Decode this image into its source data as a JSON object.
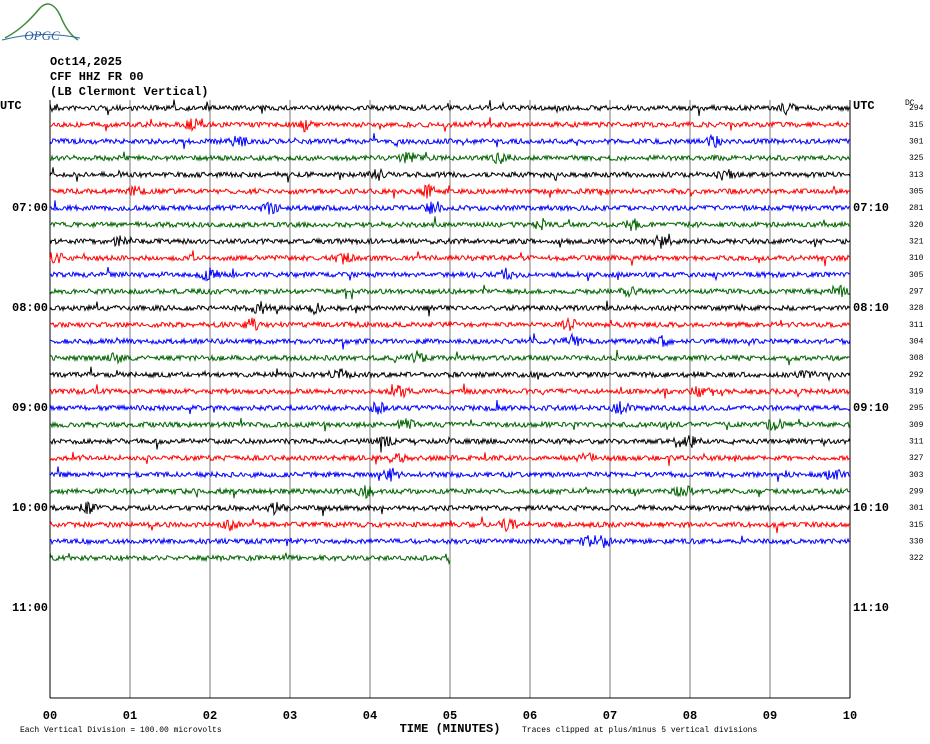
{
  "logo": "OPGC",
  "header": {
    "date": "Oct14,2025",
    "station": "CFF HHZ FR 00",
    "location": "(LB  Clermont Vertical)"
  },
  "left_labels": [
    "UTC",
    "07:00",
    "08:00",
    "09:00",
    "10:00",
    "11:00"
  ],
  "right_labels": [
    "UTC",
    "07:10",
    "08:10",
    "09:10",
    "10:10",
    "11:10"
  ],
  "dc_header": "DC",
  "dc_values": [
    "294",
    "315",
    "301",
    "325",
    "313",
    "305",
    "281",
    "320",
    "321",
    "310",
    "305",
    "297",
    "328",
    "311",
    "304",
    "308",
    "292",
    "319",
    "295",
    "309",
    "311",
    "327",
    "303",
    "299",
    "301",
    "315",
    "330",
    "322"
  ],
  "x_ticks": [
    "00",
    "01",
    "02",
    "03",
    "04",
    "05",
    "06",
    "07",
    "08",
    "09",
    "10"
  ],
  "x_label": "TIME (MINUTES)",
  "footer": {
    "scale_note": "Each Vertical Division =  100.00 microvolts",
    "clip_note": "Traces clipped at plus/minus 5 vertical divisions"
  }
}
